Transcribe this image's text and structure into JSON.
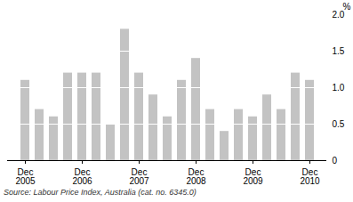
{
  "chart_data": {
    "type": "bar",
    "categories": [
      "Dec\n2005",
      null,
      null,
      null,
      "Dec\n2006",
      null,
      null,
      null,
      "Dec\n2007",
      null,
      null,
      null,
      "Dec\n2008",
      null,
      null,
      null,
      "Dec\n2009",
      null,
      null,
      null,
      "Dec\n2010"
    ],
    "values": [
      1.1,
      0.7,
      0.6,
      1.2,
      1.2,
      1.2,
      0.5,
      1.8,
      1.2,
      0.9,
      0.6,
      1.1,
      1.4,
      0.7,
      0.4,
      0.7,
      0.6,
      0.9,
      0.7,
      1.2,
      1.1
    ],
    "color": "#c3c3c3",
    "ylabel": "%",
    "ylim": [
      0,
      2
    ],
    "yticks": [
      0,
      0.5,
      {
        "value": 1,
        "label": "1.0"
      },
      1.5,
      {
        "value": 2,
        "label": "2.0"
      }
    ],
    "grid": true,
    "caption": "Source: Labour Price Index, Australia (cat. no. 6345.0)"
  }
}
